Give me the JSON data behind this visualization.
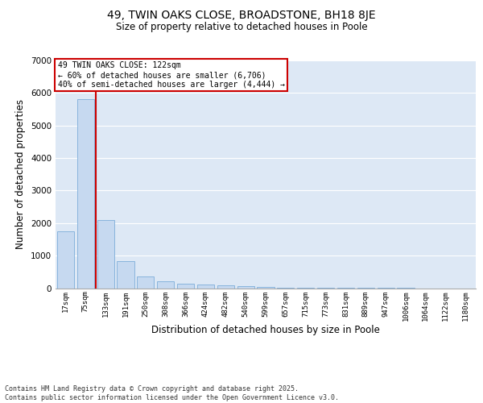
{
  "title1": "49, TWIN OAKS CLOSE, BROADSTONE, BH18 8JE",
  "title2": "Size of property relative to detached houses in Poole",
  "xlabel": "Distribution of detached houses by size in Poole",
  "ylabel": "Number of detached properties",
  "categories": [
    "17sqm",
    "75sqm",
    "133sqm",
    "191sqm",
    "250sqm",
    "308sqm",
    "366sqm",
    "424sqm",
    "482sqm",
    "540sqm",
    "599sqm",
    "657sqm",
    "715sqm",
    "773sqm",
    "831sqm",
    "889sqm",
    "947sqm",
    "1006sqm",
    "1064sqm",
    "1122sqm",
    "1180sqm"
  ],
  "values": [
    1750,
    5800,
    2100,
    820,
    370,
    220,
    140,
    100,
    80,
    55,
    30,
    10,
    5,
    3,
    2,
    1,
    1,
    1,
    0,
    0,
    0
  ],
  "bar_color": "#c6d9f0",
  "bar_edge_color": "#7dadd9",
  "vline_color": "#cc0000",
  "vline_x_index": 1,
  "annotation_text": "49 TWIN OAKS CLOSE: 122sqm\n← 60% of detached houses are smaller (6,706)\n40% of semi-detached houses are larger (4,444) →",
  "annotation_box_color": "#cc0000",
  "ylim": [
    0,
    7000
  ],
  "yticks": [
    0,
    1000,
    2000,
    3000,
    4000,
    5000,
    6000,
    7000
  ],
  "background_color": "#dde8f5",
  "grid_color": "#ffffff",
  "footer_line1": "Contains HM Land Registry data © Crown copyright and database right 2025.",
  "footer_line2": "Contains public sector information licensed under the Open Government Licence v3.0."
}
